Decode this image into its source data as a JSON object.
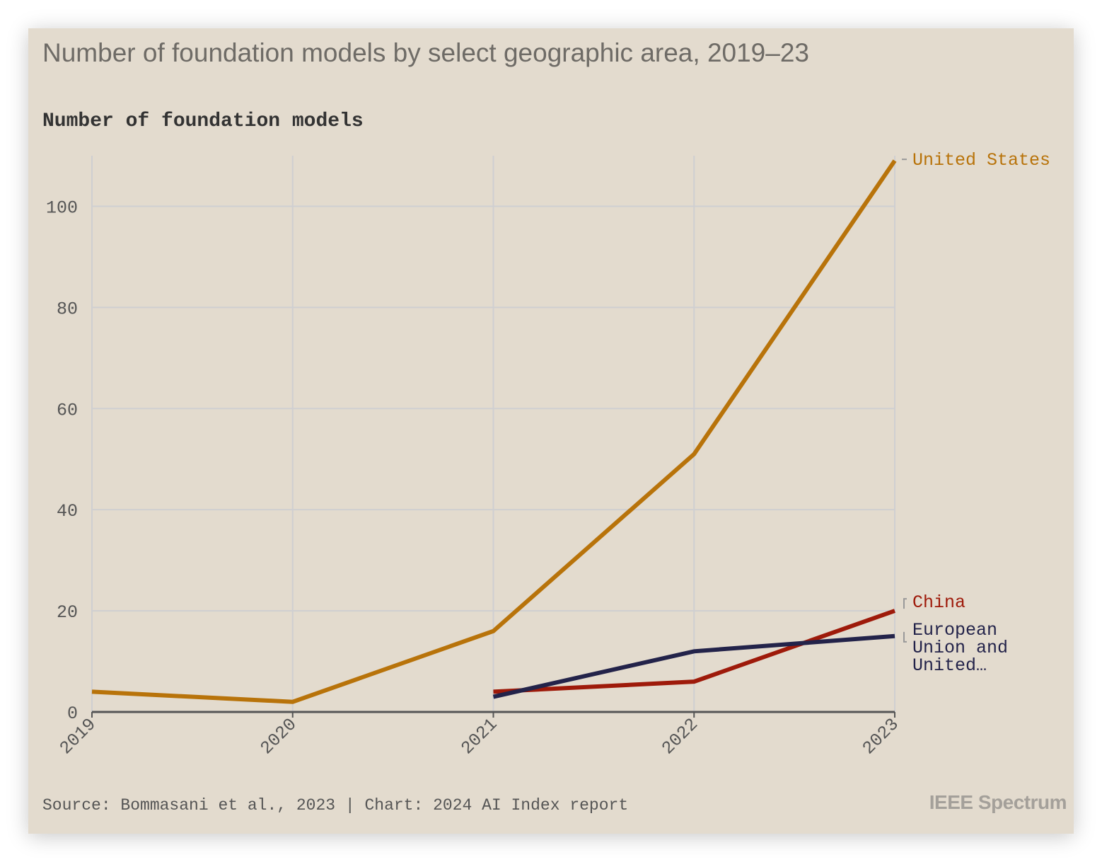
{
  "title": "Number of foundation models by select geographic area, 2019–23",
  "subtitle": "Number of foundation models",
  "source": "Source: Bommasani et al., 2023 | Chart: 2024 AI Index report",
  "brand": "IEEE Spectrum",
  "chart_data": {
    "type": "line",
    "title": "Number of foundation models by select geographic area, 2019–23",
    "ylabel": "Number of foundation models",
    "xlabel": "",
    "x": [
      "2019",
      "2020",
      "2021",
      "2022",
      "2023"
    ],
    "ylim": [
      0,
      110
    ],
    "yticks": [
      0,
      20,
      40,
      60,
      80,
      100
    ],
    "grid": true,
    "legend": "direct labels at line ends (right)",
    "series": [
      {
        "name": "United States",
        "label": "United States",
        "color": "#b8730a",
        "values": [
          4,
          2,
          16,
          51,
          109
        ]
      },
      {
        "name": "China",
        "label": "China",
        "color": "#9e1a0a",
        "values": [
          null,
          null,
          4,
          6,
          20
        ]
      },
      {
        "name": "European Union and United…",
        "label": "European Union and United…",
        "label_lines": [
          "European",
          "Union and",
          "United…"
        ],
        "color": "#23234a",
        "values": [
          null,
          null,
          3,
          12,
          15
        ]
      }
    ]
  }
}
